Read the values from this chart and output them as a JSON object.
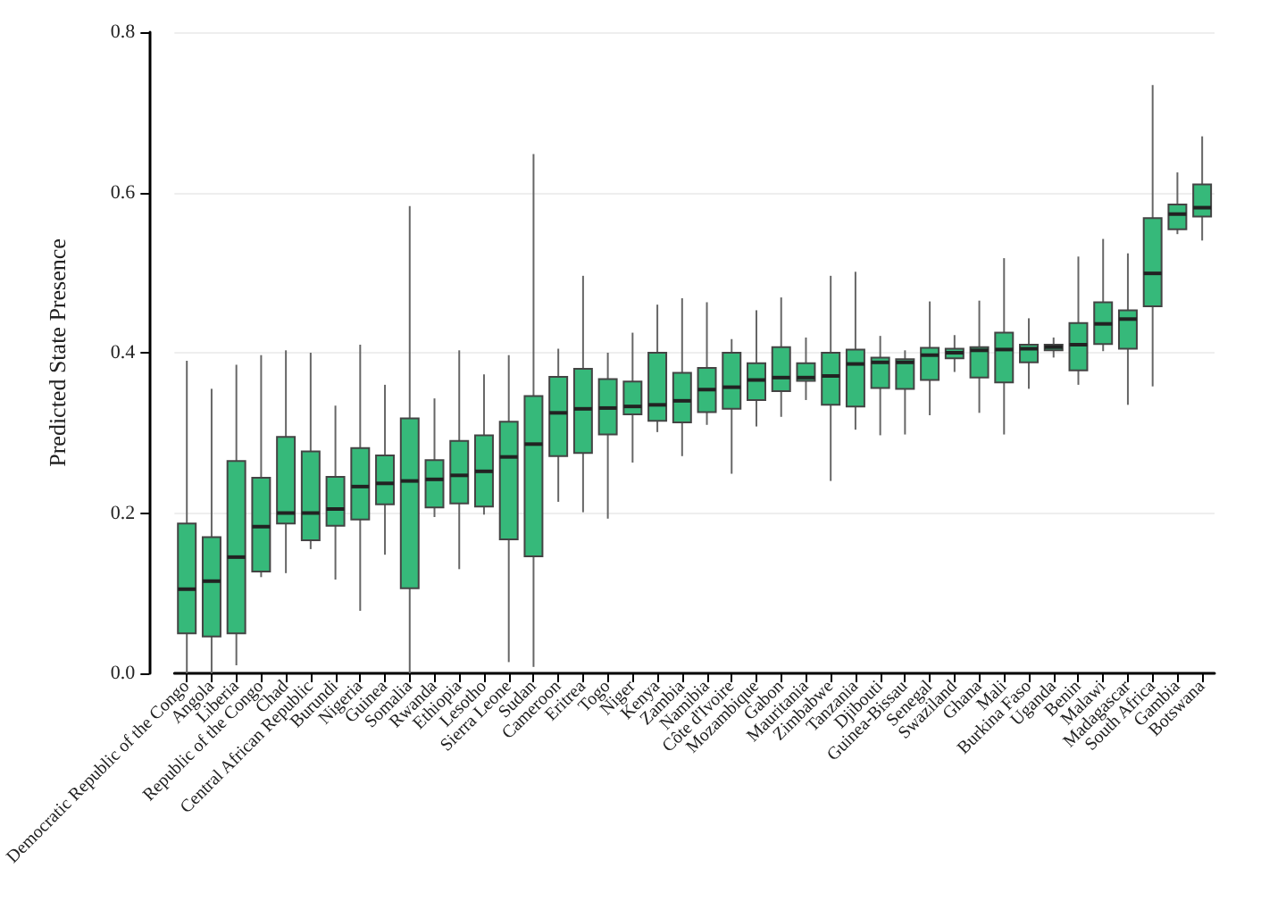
{
  "chart_data": {
    "type": "box",
    "ylabel": "Predicted State Presence",
    "categories": [
      "Democratic Republic of the Congo",
      "Angola",
      "Liberia",
      "Republic of the Congo",
      "Chad",
      "Central African Republic",
      "Burundi",
      "Nigeria",
      "Guinea",
      "Somalia",
      "Rwanda",
      "Ethiopia",
      "Lesotho",
      "Sierra Leone",
      "Sudan",
      "Cameroon",
      "Eritrea",
      "Togo",
      "Niger",
      "Kenya",
      "Zambia",
      "Namibia",
      "Côte d'Ivoire",
      "Mozambique",
      "Gabon",
      "Mauritania",
      "Zimbabwe",
      "Tanzania",
      "Djibouti",
      "Guinea-Bissau",
      "Senegal",
      "Swaziland",
      "Ghana",
      "Mali",
      "Burkina Faso",
      "Uganda",
      "Benin",
      "Malawi",
      "Madagascar",
      "South Africa",
      "Gambia",
      "Botswana"
    ],
    "color": "#36b97a",
    "boxes": [
      {
        "low": 0.0,
        "q1": 0.05,
        "median": 0.105,
        "q3": 0.187,
        "high": 0.39
      },
      {
        "low": 0.0,
        "q1": 0.046,
        "median": 0.115,
        "q3": 0.17,
        "high": 0.355
      },
      {
        "low": 0.01,
        "q1": 0.05,
        "median": 0.145,
        "q3": 0.265,
        "high": 0.385
      },
      {
        "low": 0.12,
        "q1": 0.127,
        "median": 0.183,
        "q3": 0.244,
        "high": 0.397
      },
      {
        "low": 0.125,
        "q1": 0.187,
        "median": 0.2,
        "q3": 0.295,
        "high": 0.403
      },
      {
        "low": 0.155,
        "q1": 0.166,
        "median": 0.2,
        "q3": 0.277,
        "high": 0.4
      },
      {
        "low": 0.117,
        "q1": 0.184,
        "median": 0.205,
        "q3": 0.245,
        "high": 0.334
      },
      {
        "low": 0.078,
        "q1": 0.192,
        "median": 0.233,
        "q3": 0.281,
        "high": 0.41
      },
      {
        "low": 0.148,
        "q1": 0.211,
        "median": 0.237,
        "q3": 0.272,
        "high": 0.36
      },
      {
        "low": 0.0,
        "q1": 0.106,
        "median": 0.24,
        "q3": 0.318,
        "high": 0.583
      },
      {
        "low": 0.195,
        "q1": 0.207,
        "median": 0.242,
        "q3": 0.266,
        "high": 0.343
      },
      {
        "low": 0.13,
        "q1": 0.212,
        "median": 0.247,
        "q3": 0.29,
        "high": 0.403
      },
      {
        "low": 0.198,
        "q1": 0.208,
        "median": 0.252,
        "q3": 0.297,
        "high": 0.373
      },
      {
        "low": 0.014,
        "q1": 0.167,
        "median": 0.27,
        "q3": 0.314,
        "high": 0.397
      },
      {
        "low": 0.008,
        "q1": 0.146,
        "median": 0.286,
        "q3": 0.346,
        "high": 0.648
      },
      {
        "low": 0.214,
        "q1": 0.271,
        "median": 0.325,
        "q3": 0.37,
        "high": 0.405
      },
      {
        "low": 0.201,
        "q1": 0.275,
        "median": 0.33,
        "q3": 0.38,
        "high": 0.496
      },
      {
        "low": 0.193,
        "q1": 0.298,
        "median": 0.331,
        "q3": 0.367,
        "high": 0.4
      },
      {
        "low": 0.263,
        "q1": 0.323,
        "median": 0.333,
        "q3": 0.364,
        "high": 0.425
      },
      {
        "low": 0.301,
        "q1": 0.315,
        "median": 0.335,
        "q3": 0.4,
        "high": 0.46
      },
      {
        "low": 0.271,
        "q1": 0.313,
        "median": 0.34,
        "q3": 0.375,
        "high": 0.468
      },
      {
        "low": 0.31,
        "q1": 0.326,
        "median": 0.354,
        "q3": 0.381,
        "high": 0.463
      },
      {
        "low": 0.249,
        "q1": 0.33,
        "median": 0.357,
        "q3": 0.4,
        "high": 0.417
      },
      {
        "low": 0.308,
        "q1": 0.341,
        "median": 0.366,
        "q3": 0.387,
        "high": 0.453
      },
      {
        "low": 0.32,
        "q1": 0.352,
        "median": 0.369,
        "q3": 0.407,
        "high": 0.469
      },
      {
        "low": 0.341,
        "q1": 0.365,
        "median": 0.369,
        "q3": 0.387,
        "high": 0.419
      },
      {
        "low": 0.24,
        "q1": 0.335,
        "median": 0.371,
        "q3": 0.4,
        "high": 0.496
      },
      {
        "low": 0.304,
        "q1": 0.333,
        "median": 0.386,
        "q3": 0.404,
        "high": 0.501
      },
      {
        "low": 0.297,
        "q1": 0.356,
        "median": 0.388,
        "q3": 0.394,
        "high": 0.421
      },
      {
        "low": 0.298,
        "q1": 0.355,
        "median": 0.388,
        "q3": 0.392,
        "high": 0.403
      },
      {
        "low": 0.322,
        "q1": 0.366,
        "median": 0.397,
        "q3": 0.406,
        "high": 0.464
      },
      {
        "low": 0.376,
        "q1": 0.393,
        "median": 0.4,
        "q3": 0.405,
        "high": 0.422
      },
      {
        "low": 0.325,
        "q1": 0.369,
        "median": 0.403,
        "q3": 0.407,
        "high": 0.465
      },
      {
        "low": 0.298,
        "q1": 0.363,
        "median": 0.404,
        "q3": 0.425,
        "high": 0.518
      },
      {
        "low": 0.355,
        "q1": 0.388,
        "median": 0.405,
        "q3": 0.41,
        "high": 0.443
      },
      {
        "low": 0.394,
        "q1": 0.403,
        "median": 0.407,
        "q3": 0.41,
        "high": 0.419
      },
      {
        "low": 0.36,
        "q1": 0.378,
        "median": 0.41,
        "q3": 0.437,
        "high": 0.52
      },
      {
        "low": 0.402,
        "q1": 0.411,
        "median": 0.436,
        "q3": 0.463,
        "high": 0.542
      },
      {
        "low": 0.335,
        "q1": 0.405,
        "median": 0.442,
        "q3": 0.453,
        "high": 0.524
      },
      {
        "low": 0.358,
        "q1": 0.458,
        "median": 0.499,
        "q3": 0.568,
        "high": 0.734
      },
      {
        "low": 0.548,
        "q1": 0.554,
        "median": 0.573,
        "q3": 0.585,
        "high": 0.625
      },
      {
        "low": 0.54,
        "q1": 0.57,
        "median": 0.581,
        "q3": 0.61,
        "high": 0.67
      }
    ],
    "ylim": [
      0,
      0.8
    ],
    "yticks": [
      {
        "value": 0,
        "label": "0.0"
      },
      {
        "value": 0.2,
        "label": "0.2"
      },
      {
        "value": 0.4,
        "label": "0.4"
      },
      {
        "value": 0.6,
        "label": "0.6"
      },
      {
        "value": 0.8,
        "label": "0.8"
      }
    ],
    "grid": "y"
  }
}
